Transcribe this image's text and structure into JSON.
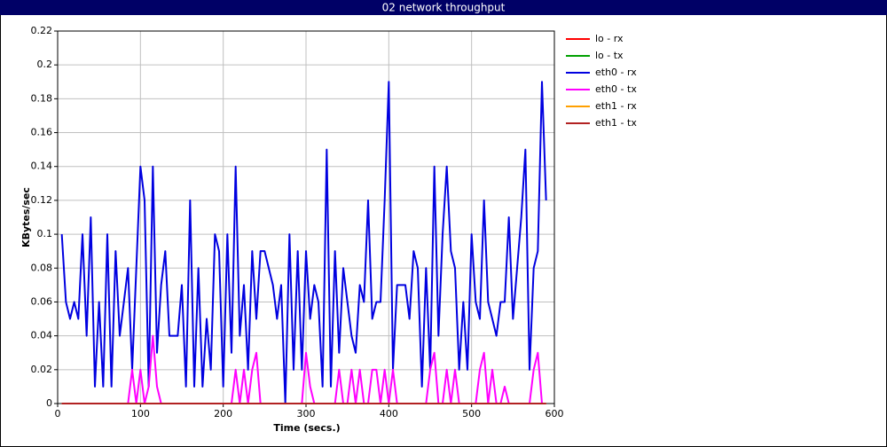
{
  "chart_data": {
    "type": "line",
    "title": "02 network throughput",
    "xlabel": "Time (secs.)",
    "ylabel": "KBytes/sec",
    "xlim": [
      0,
      600
    ],
    "xticks": [
      0,
      100,
      200,
      300,
      400,
      500,
      600
    ],
    "ylim": [
      0,
      0.22
    ],
    "yticks": [
      0,
      0.02,
      0.04,
      0.06,
      0.08,
      0.1,
      0.12,
      0.14,
      0.16,
      0.18,
      0.2,
      0.22
    ],
    "grid": true,
    "legend": "right",
    "x": [
      5,
      10,
      15,
      20,
      25,
      30,
      35,
      40,
      45,
      50,
      55,
      60,
      65,
      70,
      75,
      80,
      85,
      90,
      95,
      100,
      105,
      110,
      115,
      120,
      125,
      130,
      135,
      140,
      145,
      150,
      155,
      160,
      165,
      170,
      175,
      180,
      185,
      190,
      195,
      200,
      205,
      210,
      215,
      220,
      225,
      230,
      235,
      240,
      245,
      250,
      255,
      260,
      265,
      270,
      275,
      280,
      285,
      290,
      295,
      300,
      305,
      310,
      315,
      320,
      325,
      330,
      335,
      340,
      345,
      350,
      355,
      360,
      365,
      370,
      375,
      380,
      385,
      390,
      395,
      400,
      405,
      410,
      415,
      420,
      425,
      430,
      435,
      440,
      445,
      450,
      455,
      460,
      465,
      470,
      475,
      480,
      485,
      490,
      495,
      500,
      505,
      510,
      515,
      520,
      525,
      530,
      535,
      540,
      545,
      550,
      555,
      560,
      565,
      570,
      575,
      580,
      585,
      590
    ],
    "series": [
      {
        "name": "lo - rx",
        "color": "#ff0000",
        "values": [
          0,
          0,
          0,
          0,
          0,
          0,
          0,
          0,
          0,
          0,
          0,
          0,
          0,
          0,
          0,
          0,
          0,
          0,
          0,
          0,
          0,
          0,
          0,
          0,
          0,
          0,
          0,
          0,
          0,
          0,
          0,
          0,
          0,
          0,
          0,
          0,
          0,
          0,
          0,
          0,
          0,
          0,
          0,
          0,
          0,
          0,
          0,
          0,
          0,
          0,
          0,
          0,
          0,
          0,
          0,
          0,
          0,
          0,
          0,
          0,
          0,
          0,
          0,
          0,
          0,
          0,
          0,
          0,
          0,
          0,
          0,
          0,
          0,
          0,
          0,
          0,
          0,
          0,
          0,
          0,
          0,
          0,
          0,
          0,
          0,
          0,
          0,
          0,
          0,
          0,
          0,
          0,
          0,
          0,
          0,
          0,
          0,
          0,
          0,
          0,
          0,
          0,
          0,
          0,
          0,
          0,
          0,
          0,
          0,
          0,
          0,
          0,
          0,
          0,
          0,
          0,
          0,
          0
        ]
      },
      {
        "name": "lo - tx",
        "color": "#00a000",
        "values": [
          0,
          0,
          0,
          0,
          0,
          0,
          0,
          0,
          0,
          0,
          0,
          0,
          0,
          0,
          0,
          0,
          0,
          0,
          0,
          0,
          0,
          0,
          0,
          0,
          0,
          0,
          0,
          0,
          0,
          0,
          0,
          0,
          0,
          0,
          0,
          0,
          0,
          0,
          0,
          0,
          0,
          0,
          0,
          0,
          0,
          0,
          0,
          0,
          0,
          0,
          0,
          0,
          0,
          0,
          0,
          0,
          0,
          0,
          0,
          0,
          0,
          0,
          0,
          0,
          0,
          0,
          0,
          0,
          0,
          0,
          0,
          0,
          0,
          0,
          0,
          0,
          0,
          0,
          0,
          0,
          0,
          0,
          0,
          0,
          0,
          0,
          0,
          0,
          0,
          0,
          0,
          0,
          0,
          0,
          0,
          0,
          0,
          0,
          0,
          0,
          0,
          0,
          0,
          0,
          0,
          0,
          0,
          0,
          0,
          0,
          0,
          0,
          0,
          0,
          0,
          0,
          0,
          0
        ]
      },
      {
        "name": "eth0 - rx",
        "color": "#0000e0",
        "values": [
          0.1,
          0.06,
          0.05,
          0.06,
          0.05,
          0.1,
          0.04,
          0.11,
          0.01,
          0.06,
          0.01,
          0.1,
          0.01,
          0.09,
          0.04,
          0.06,
          0.08,
          0.02,
          0.08,
          0.14,
          0.12,
          0.01,
          0.14,
          0.03,
          0.07,
          0.09,
          0.04,
          0.04,
          0.04,
          0.07,
          0.01,
          0.12,
          0.01,
          0.08,
          0.01,
          0.05,
          0.02,
          0.1,
          0.09,
          0.01,
          0.1,
          0.03,
          0.14,
          0.04,
          0.07,
          0.02,
          0.09,
          0.05,
          0.09,
          0.09,
          0.08,
          0.07,
          0.05,
          0.07,
          0,
          0.1,
          0.02,
          0.09,
          0.02,
          0.09,
          0.05,
          0.07,
          0.06,
          0.01,
          0.15,
          0.01,
          0.09,
          0.03,
          0.08,
          0.06,
          0.04,
          0.03,
          0.07,
          0.06,
          0.12,
          0.05,
          0.06,
          0.06,
          0.12,
          0.19,
          0.02,
          0.07,
          0.07,
          0.07,
          0.05,
          0.09,
          0.08,
          0.01,
          0.08,
          0.02,
          0.14,
          0.04,
          0.1,
          0.14,
          0.09,
          0.08,
          0.02,
          0.06,
          0.02,
          0.1,
          0.06,
          0.05,
          0.12,
          0.06,
          0.05,
          0.04,
          0.06,
          0.06,
          0.11,
          0.05,
          0.08,
          0.11,
          0.15,
          0.02,
          0.08,
          0.09,
          0.19,
          0.12
        ]
      },
      {
        "name": "eth0 - tx",
        "color": "#ff00ff",
        "values": [
          0,
          0,
          0,
          0,
          0,
          0,
          0,
          0,
          0,
          0,
          0,
          0,
          0,
          0,
          0,
          0,
          0,
          0.02,
          0,
          0.02,
          0,
          0.01,
          0.04,
          0.01,
          0,
          0,
          0,
          0,
          0,
          0,
          0,
          0,
          0,
          0,
          0,
          0,
          0,
          0,
          0,
          0,
          0,
          0,
          0.02,
          0,
          0.02,
          0,
          0.02,
          0.03,
          0,
          0,
          0,
          0,
          0,
          0,
          0,
          0,
          0,
          0,
          0,
          0.03,
          0.01,
          0,
          0,
          0,
          0,
          0,
          0,
          0.02,
          0,
          0,
          0.02,
          0,
          0.02,
          0,
          0,
          0.02,
          0.02,
          0,
          0.02,
          0,
          0.02,
          0,
          0,
          0,
          0,
          0,
          0,
          0,
          0,
          0.02,
          0.03,
          0,
          0,
          0.02,
          0,
          0.02,
          0,
          0,
          0,
          0,
          0,
          0.02,
          0.03,
          0,
          0.02,
          0,
          0,
          0.01,
          0,
          0,
          0,
          0,
          0,
          0,
          0.02,
          0.03,
          0,
          0
        ]
      },
      {
        "name": "eth1 - rx",
        "color": "#ffa000",
        "values": [
          0,
          0,
          0,
          0,
          0,
          0,
          0,
          0,
          0,
          0,
          0,
          0,
          0,
          0,
          0,
          0,
          0,
          0,
          0,
          0,
          0,
          0,
          0,
          0,
          0,
          0,
          0,
          0,
          0,
          0,
          0,
          0,
          0,
          0,
          0,
          0,
          0,
          0,
          0,
          0,
          0,
          0,
          0,
          0,
          0,
          0,
          0,
          0,
          0,
          0,
          0,
          0,
          0,
          0,
          0,
          0,
          0,
          0,
          0,
          0,
          0,
          0,
          0,
          0,
          0,
          0,
          0,
          0,
          0,
          0,
          0,
          0,
          0,
          0,
          0,
          0,
          0,
          0,
          0,
          0,
          0,
          0,
          0,
          0,
          0,
          0,
          0,
          0,
          0,
          0,
          0,
          0,
          0,
          0,
          0,
          0,
          0,
          0,
          0,
          0,
          0,
          0,
          0,
          0,
          0,
          0,
          0,
          0,
          0,
          0,
          0,
          0,
          0,
          0,
          0,
          0,
          0,
          0
        ]
      },
      {
        "name": "eth1 - tx",
        "color": "#b22222",
        "values": [
          0,
          0,
          0,
          0,
          0,
          0,
          0,
          0,
          0,
          0,
          0,
          0,
          0,
          0,
          0,
          0,
          0,
          0,
          0,
          0,
          0,
          0,
          0,
          0,
          0,
          0,
          0,
          0,
          0,
          0,
          0,
          0,
          0,
          0,
          0,
          0,
          0,
          0,
          0,
          0,
          0,
          0,
          0,
          0,
          0,
          0,
          0,
          0,
          0,
          0,
          0,
          0,
          0,
          0,
          0,
          0,
          0,
          0,
          0,
          0,
          0,
          0,
          0,
          0,
          0,
          0,
          0,
          0,
          0,
          0,
          0,
          0,
          0,
          0,
          0,
          0,
          0,
          0,
          0,
          0,
          0,
          0,
          0,
          0,
          0,
          0,
          0,
          0,
          0,
          0,
          0,
          0,
          0,
          0,
          0,
          0,
          0,
          0,
          0,
          0,
          0,
          0,
          0,
          0,
          0,
          0,
          0,
          0,
          0,
          0,
          0,
          0,
          0,
          0,
          0,
          0,
          0,
          0
        ]
      }
    ]
  }
}
